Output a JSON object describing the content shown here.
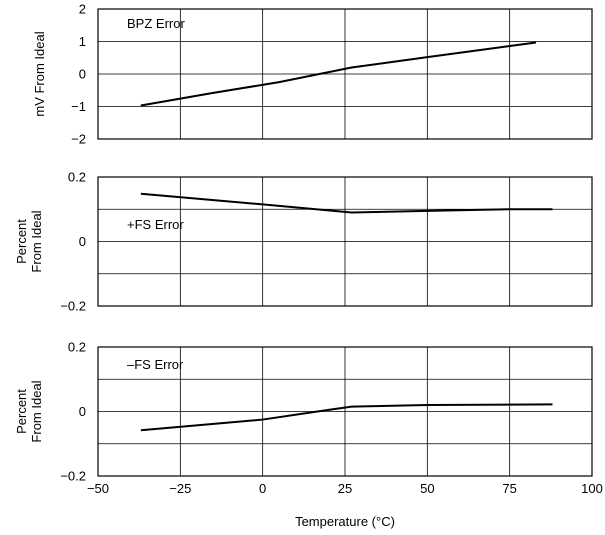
{
  "chart_data": [
    {
      "type": "line",
      "title": "",
      "annotation": "BPZ Error",
      "xlabel": "",
      "ylabel_lines": [
        "mV From Ideal"
      ],
      "xlim": [
        -50,
        100
      ],
      "ylim": [
        -2,
        2
      ],
      "xticks": [
        -50,
        -25,
        0,
        25,
        50,
        75,
        100
      ],
      "yticks": [
        2,
        1,
        0,
        -1,
        -2
      ],
      "ytick_labels": [
        "2",
        "1",
        "0",
        "−1",
        "−2"
      ],
      "grid": true,
      "series": [
        {
          "x": [
            -37,
            -15,
            5,
            27,
            50,
            83
          ],
          "y": [
            -0.97,
            -0.58,
            -0.25,
            0.2,
            0.52,
            0.97
          ]
        }
      ]
    },
    {
      "type": "line",
      "title": "",
      "annotation": "+FS Error",
      "xlabel": "",
      "ylabel_lines": [
        "Percent",
        "From Ideal"
      ],
      "xlim": [
        -50,
        100
      ],
      "ylim": [
        -0.2,
        0.2
      ],
      "xticks": [
        -50,
        -25,
        0,
        25,
        50,
        75,
        100
      ],
      "yticks": [
        0.2,
        0,
        -0.2
      ],
      "ytick_labels": [
        "0.2",
        "0",
        "−0.2"
      ],
      "grid": true,
      "series": [
        {
          "x": [
            -37,
            0,
            27,
            50,
            75,
            88
          ],
          "y": [
            0.148,
            0.115,
            0.09,
            0.095,
            0.1,
            0.1
          ]
        }
      ]
    },
    {
      "type": "line",
      "title": "",
      "annotation": "–FS Error",
      "xlabel": "Temperature (°C)",
      "ylabel_lines": [
        "Percent",
        "From Ideal"
      ],
      "xlim": [
        -50,
        100
      ],
      "ylim": [
        -0.2,
        0.2
      ],
      "xticks": [
        -50,
        -25,
        0,
        25,
        50,
        75,
        100
      ],
      "yticks": [
        0.2,
        0,
        -0.2
      ],
      "ytick_labels": [
        "0.2",
        "0",
        "−0.2"
      ],
      "xtick_labels": [
        "−50",
        "−25",
        "0",
        "25",
        "50",
        "75",
        "100"
      ],
      "grid": true,
      "series": [
        {
          "x": [
            -37,
            0,
            20,
            27,
            50,
            88
          ],
          "y": [
            -0.058,
            -0.025,
            0.005,
            0.015,
            0.02,
            0.022
          ]
        }
      ]
    }
  ]
}
